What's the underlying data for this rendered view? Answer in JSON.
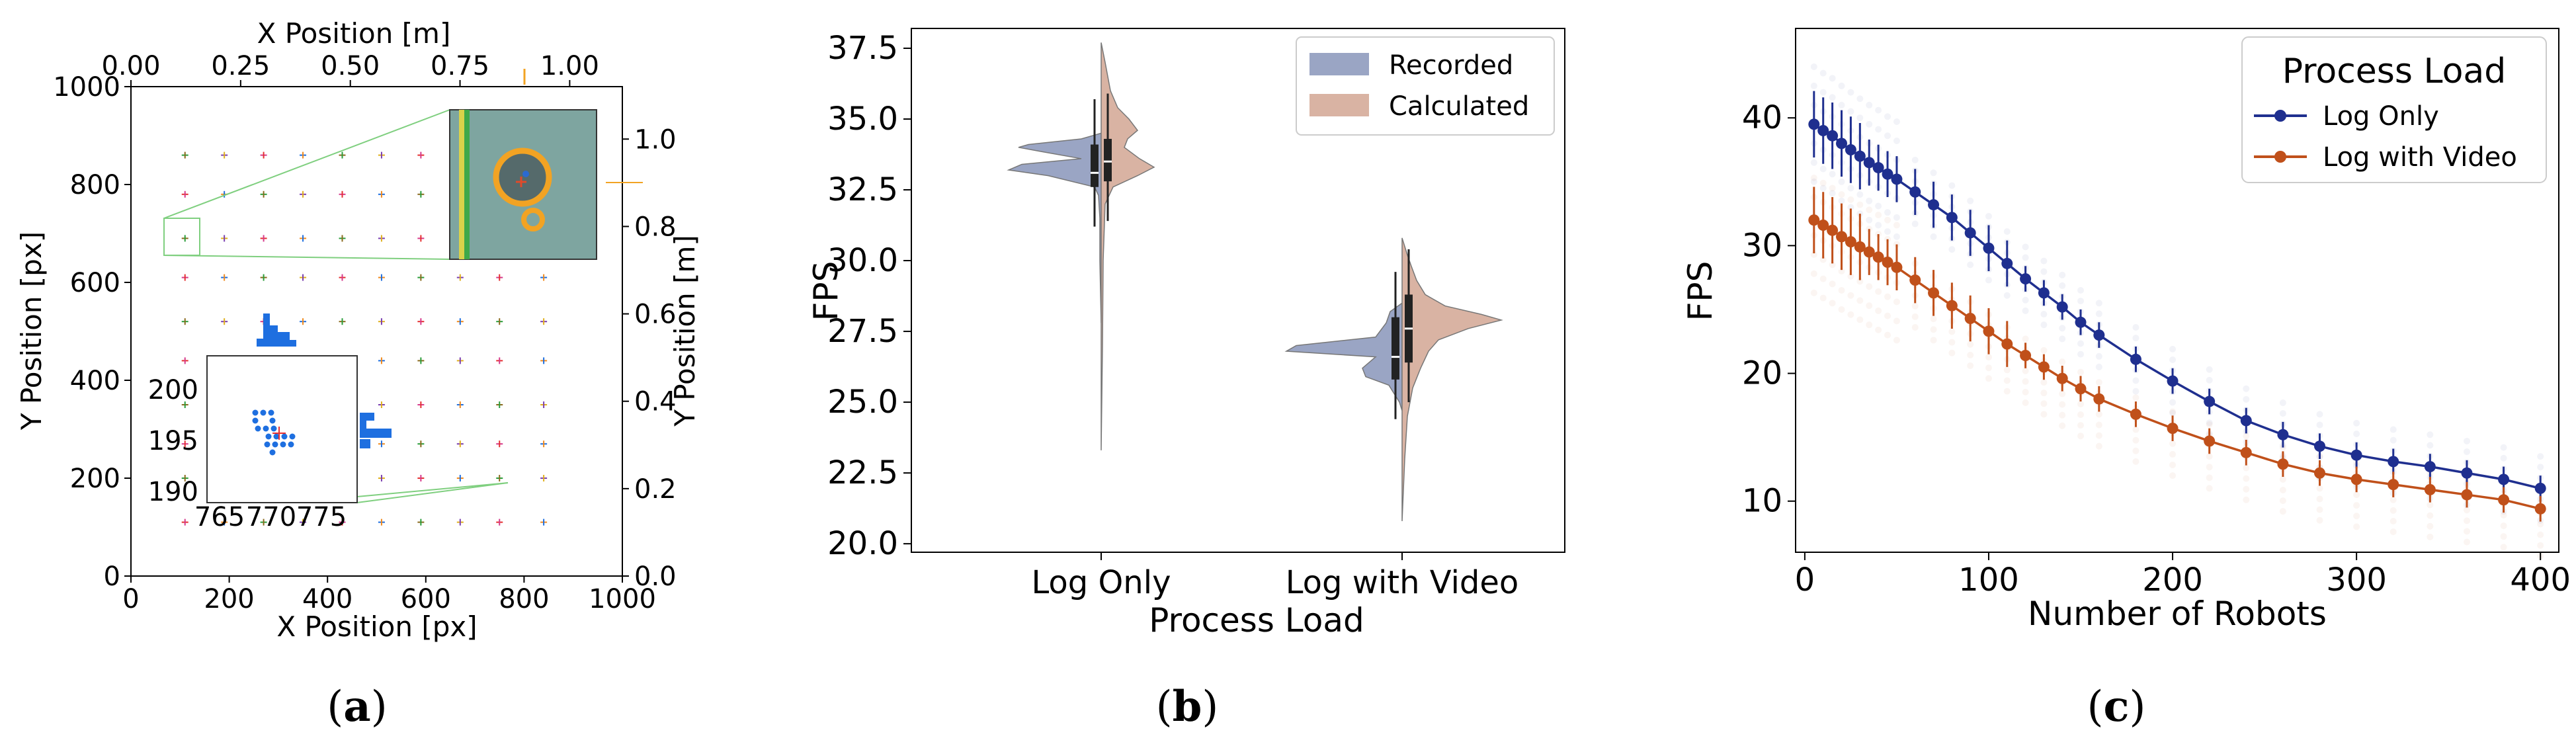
{
  "panels": {
    "a": {
      "caption_letter": "a",
      "x_bottom_label": "X Position [px]",
      "y_left_label": "Y Position [px]",
      "x_top_label": "X Position [m]",
      "y_right_label": "Y Position [m]",
      "x_bottom_ticks": [
        "0",
        "200",
        "400",
        "600",
        "800",
        "1000"
      ],
      "y_left_ticks": [
        "0",
        "200",
        "400",
        "600",
        "800",
        "1000"
      ],
      "x_top_ticks": [
        "0.00",
        "0.25",
        "0.50",
        "0.75",
        "1.00"
      ],
      "y_right_ticks": [
        "0.0",
        "0.2",
        "0.4",
        "0.6",
        "0.8",
        "1.0"
      ],
      "inset_x_ticks": [
        "765",
        "770",
        "775"
      ],
      "inset_y_ticks": [
        "190",
        "195",
        "200"
      ]
    },
    "b": {
      "caption_letter": "b",
      "xlabel": "Process Load",
      "ylabel": "FPS",
      "categories": [
        "Log Only",
        "Log with Video"
      ],
      "y_ticks": [
        "20.0",
        "22.5",
        "25.0",
        "27.5",
        "30.0",
        "32.5",
        "35.0",
        "37.5"
      ],
      "legend": [
        "Recorded",
        "Calculated"
      ],
      "colors": {
        "recorded": "#9aa5c4",
        "calculated": "#d9b3a3"
      }
    },
    "c": {
      "caption_letter": "c",
      "xlabel": "Number of Robots",
      "ylabel": "FPS",
      "x_ticks": [
        "0",
        "100",
        "200",
        "300",
        "400"
      ],
      "y_ticks": [
        "10",
        "20",
        "30",
        "40"
      ],
      "legend_title": "Process Load",
      "legend": [
        "Log Only",
        "Log with Video"
      ],
      "colors": {
        "log_only": "#1f2f8f",
        "log_video": "#c0501a"
      }
    }
  },
  "chart_data": [
    {
      "type": "scatter",
      "xlabel": "X Position [px]",
      "ylabel": "Y Position [px]",
      "xlim": [
        0,
        1000
      ],
      "ylim": [
        0,
        1000
      ],
      "grid_x": [
        110,
        190,
        270,
        350,
        430,
        510,
        590,
        670,
        750,
        840
      ],
      "grid_y": [
        110,
        200,
        270,
        350,
        440,
        520,
        610,
        690,
        780,
        860
      ]
    },
    {
      "type": "violin",
      "xlabel": "Process Load",
      "ylabel": "FPS",
      "ylim": [
        20,
        38
      ],
      "categories": [
        "Log Only",
        "Log with Video"
      ],
      "series": [
        {
          "name": "Recorded",
          "medians": [
            33.1,
            26.6
          ],
          "q1": [
            32.6,
            25.8
          ],
          "q3": [
            34.1,
            28.0
          ]
        },
        {
          "name": "Calculated",
          "medians": [
            33.5,
            27.6
          ],
          "q1": [
            32.8,
            26.4
          ],
          "q3": [
            34.3,
            28.8
          ]
        }
      ]
    },
    {
      "type": "line",
      "xlabel": "Number of Robots",
      "ylabel": "FPS",
      "xlim": [
        -5,
        410
      ],
      "ylim": [
        6,
        47
      ],
      "x": [
        5,
        10,
        15,
        20,
        25,
        30,
        35,
        40,
        45,
        50,
        60,
        70,
        80,
        90,
        100,
        110,
        120,
        130,
        140,
        150,
        160,
        180,
        200,
        220,
        240,
        260,
        280,
        300,
        320,
        340,
        360,
        380,
        400
      ],
      "series": [
        {
          "name": "Log Only",
          "values": [
            39.5,
            39.0,
            38.6,
            38.0,
            37.5,
            37.0,
            36.5,
            36.1,
            35.6,
            35.2,
            34.2,
            33.2,
            32.2,
            31.0,
            29.8,
            28.6,
            27.4,
            26.3,
            25.2,
            24.0,
            23.0,
            21.1,
            19.4,
            17.8,
            16.3,
            15.2,
            14.3,
            13.6,
            13.1,
            12.7,
            12.2,
            11.7,
            11.0
          ]
        },
        {
          "name": "Log with Video",
          "values": [
            32.0,
            31.6,
            31.2,
            30.7,
            30.3,
            29.9,
            29.5,
            29.1,
            28.7,
            28.3,
            27.3,
            26.3,
            25.3,
            24.3,
            23.3,
            22.3,
            21.4,
            20.5,
            19.6,
            18.8,
            18.0,
            16.8,
            15.7,
            14.7,
            13.8,
            12.9,
            12.2,
            11.7,
            11.3,
            10.9,
            10.5,
            10.1,
            9.4
          ]
        }
      ]
    }
  ]
}
